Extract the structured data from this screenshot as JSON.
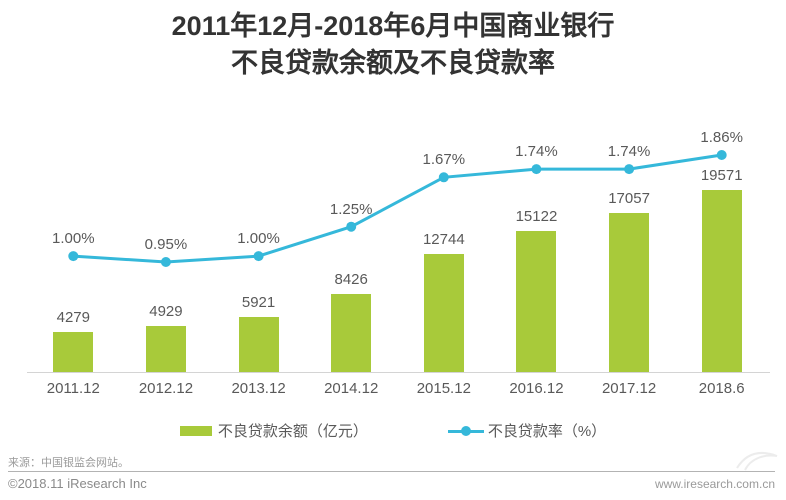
{
  "title": {
    "line1": "2011年12月-2018年6月中国商业银行",
    "line2": "不良贷款余额及不良贷款率"
  },
  "chart_data": {
    "type": "bar",
    "subtype": "bar+line combo, dual axis",
    "title": "2011年12月-2018年6月中国商业银行不良贷款余额及不良贷款率",
    "categories": [
      "2011.12",
      "2012.12",
      "2013.12",
      "2014.12",
      "2015.12",
      "2016.12",
      "2017.12",
      "2018.6"
    ],
    "series": [
      {
        "name": "不良贷款余额（亿元）",
        "type": "bar",
        "values": [
          4279,
          4929,
          5921,
          8426,
          12744,
          15122,
          17057,
          19571
        ],
        "color": "#a8ca3a"
      },
      {
        "name": "不良贷款率（%）",
        "type": "line",
        "values": [
          1.0,
          0.95,
          1.0,
          1.25,
          1.67,
          1.74,
          1.74,
          1.86
        ],
        "labels": [
          "1.00%",
          "0.95%",
          "1.00%",
          "1.25%",
          "1.67%",
          "1.74%",
          "1.74%",
          "1.86%"
        ],
        "color": "#35b8da"
      }
    ],
    "grid": false,
    "legend_position": "bottom",
    "data_labels": true
  },
  "legend": {
    "bars": "不良贷款余额（亿元）",
    "line": "不良贷款率（%）"
  },
  "footer": {
    "source": "来源：中国银监会网站。",
    "copyright": "©2018.11 iResearch Inc",
    "website": "www.iresearch.com.cn"
  }
}
